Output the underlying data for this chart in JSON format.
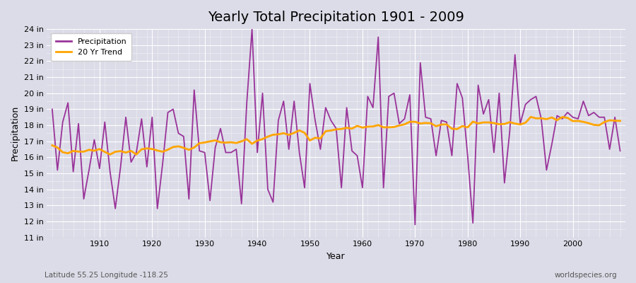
{
  "title": "Yearly Total Precipitation 1901 - 2009",
  "xlabel": "Year",
  "ylabel": "Precipitation",
  "subtitle": "Latitude 55.25 Longitude -118.25",
  "watermark": "worldspecies.org",
  "years": [
    1901,
    1902,
    1903,
    1904,
    1905,
    1906,
    1907,
    1908,
    1909,
    1910,
    1911,
    1912,
    1913,
    1914,
    1915,
    1916,
    1917,
    1918,
    1919,
    1920,
    1921,
    1922,
    1923,
    1924,
    1925,
    1926,
    1927,
    1928,
    1929,
    1930,
    1931,
    1932,
    1933,
    1934,
    1935,
    1936,
    1937,
    1938,
    1939,
    1940,
    1941,
    1942,
    1943,
    1944,
    1945,
    1946,
    1947,
    1948,
    1949,
    1950,
    1951,
    1952,
    1953,
    1954,
    1955,
    1956,
    1957,
    1958,
    1959,
    1960,
    1961,
    1962,
    1963,
    1964,
    1965,
    1966,
    1967,
    1968,
    1969,
    1970,
    1971,
    1972,
    1973,
    1974,
    1975,
    1976,
    1977,
    1978,
    1979,
    1980,
    1981,
    1982,
    1983,
    1984,
    1985,
    1986,
    1987,
    1988,
    1989,
    1990,
    1991,
    1992,
    1993,
    1994,
    1995,
    1996,
    1997,
    1998,
    1999,
    2000,
    2001,
    2002,
    2003,
    2004,
    2005,
    2006,
    2007,
    2008,
    2009
  ],
  "precip": [
    19.0,
    15.2,
    18.2,
    19.4,
    15.1,
    18.1,
    13.4,
    15.2,
    17.1,
    15.3,
    18.2,
    15.1,
    12.8,
    15.4,
    18.5,
    15.7,
    16.3,
    18.4,
    15.4,
    18.5,
    12.8,
    15.6,
    18.8,
    19.0,
    17.5,
    17.3,
    13.4,
    20.2,
    16.4,
    16.3,
    13.3,
    16.6,
    17.8,
    16.3,
    16.3,
    16.5,
    13.1,
    19.4,
    24.0,
    16.3,
    20.0,
    14.0,
    13.2,
    18.3,
    19.5,
    16.5,
    19.5,
    16.3,
    14.1,
    20.6,
    18.3,
    16.5,
    19.1,
    18.3,
    17.8,
    14.1,
    19.1,
    16.4,
    16.1,
    14.1,
    19.8,
    19.1,
    23.5,
    14.1,
    19.8,
    20.0,
    18.1,
    18.4,
    19.9,
    11.8,
    21.9,
    18.5,
    18.4,
    16.1,
    18.3,
    18.2,
    16.1,
    20.6,
    19.7,
    16.1,
    11.9,
    20.5,
    18.7,
    19.6,
    16.3,
    20.0,
    14.4,
    17.6,
    22.4,
    18.1,
    19.3,
    19.6,
    19.8,
    18.4,
    15.2,
    16.8,
    18.6,
    18.4,
    18.8,
    18.5,
    18.4,
    19.5,
    18.6,
    18.8,
    18.5,
    18.5,
    16.5,
    18.5,
    16.4
  ],
  "precip_color": "#993399",
  "trend_color": "#FFA500",
  "bg_color": "#DCDCE8",
  "plot_bg_color": "#DCDCE8",
  "ylim_min": 11,
  "ylim_max": 24,
  "yticks": [
    11,
    12,
    13,
    14,
    15,
    16,
    17,
    18,
    19,
    20,
    21,
    22,
    23,
    24
  ],
  "ytick_labels": [
    "11 in",
    "12 in",
    "13 in",
    "14 in",
    "15 in",
    "16 in",
    "17 in",
    "18 in",
    "19 in",
    "20 in",
    "21 in",
    "22 in",
    "23 in",
    "24 in"
  ],
  "xticks": [
    1910,
    1920,
    1930,
    1940,
    1950,
    1960,
    1970,
    1980,
    1990,
    2000
  ],
  "trend_window": 20,
  "grid_color": "#FFFFFF",
  "title_fontsize": 14,
  "axis_fontsize": 9,
  "tick_fontsize": 8
}
